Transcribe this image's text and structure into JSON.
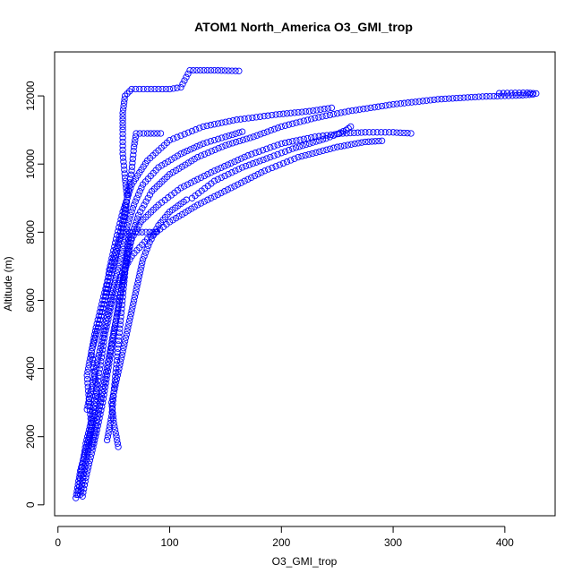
{
  "chart_data": {
    "type": "scatter",
    "title": "ATOM1 North_America O3_GMI_trop",
    "xlabel": "O3_GMI_trop",
    "ylabel": "Altitude (m)",
    "xlim": [
      -3,
      445
    ],
    "ylim": [
      -320,
      13290
    ],
    "x_ticks": [
      0,
      100,
      200,
      300,
      400
    ],
    "y_ticks": [
      0,
      2000,
      4000,
      6000,
      8000,
      10000,
      12000
    ],
    "x_tick_labels": [
      "0",
      "100",
      "200",
      "300",
      "400"
    ],
    "y_tick_labels": [
      "0",
      "2000",
      "4000",
      "6000",
      "8000",
      "10000",
      "12000"
    ],
    "grid": false,
    "legend": "none",
    "marker": "open-circle",
    "color": "#0000ff",
    "series": [
      {
        "points": [
          [
            16,
            200
          ],
          [
            18,
            600
          ],
          [
            20,
            1000
          ],
          [
            24,
            1500
          ],
          [
            28,
            2000
          ],
          [
            32,
            2600
          ],
          [
            35,
            3200
          ],
          [
            33,
            3800
          ],
          [
            30,
            4500
          ],
          [
            34,
            5200
          ],
          [
            40,
            6000
          ],
          [
            46,
            6800
          ],
          [
            52,
            7500
          ],
          [
            58,
            8000
          ],
          [
            62,
            9000
          ],
          [
            60,
            9600
          ],
          [
            58,
            10300
          ],
          [
            58,
            11000
          ],
          [
            58,
            11500
          ],
          [
            60,
            12000
          ],
          [
            66,
            12200
          ],
          [
            80,
            12200
          ],
          [
            100,
            12200
          ],
          [
            110,
            12250
          ],
          [
            118,
            12750
          ],
          [
            140,
            12750
          ],
          [
            162,
            12730
          ]
        ]
      },
      {
        "points": [
          [
            20,
            300
          ],
          [
            23,
            900
          ],
          [
            27,
            1600
          ],
          [
            30,
            2300
          ],
          [
            28,
            3000
          ],
          [
            26,
            3800
          ],
          [
            30,
            4500
          ],
          [
            36,
            5200
          ],
          [
            42,
            6000
          ],
          [
            50,
            7000
          ],
          [
            56,
            8000
          ],
          [
            62,
            9000
          ],
          [
            66,
            9800
          ],
          [
            68,
            10500
          ],
          [
            70,
            10900
          ],
          [
            80,
            10900
          ],
          [
            92,
            10900
          ]
        ]
      },
      {
        "points": [
          [
            22,
            250
          ],
          [
            25,
            800
          ],
          [
            30,
            1500
          ],
          [
            35,
            2200
          ],
          [
            40,
            3000
          ],
          [
            44,
            3800
          ],
          [
            48,
            4600
          ],
          [
            52,
            5400
          ],
          [
            56,
            6200
          ],
          [
            60,
            7000
          ],
          [
            66,
            7800
          ],
          [
            74,
            8300
          ],
          [
            90,
            8800
          ],
          [
            110,
            9300
          ],
          [
            140,
            9800
          ],
          [
            170,
            10250
          ],
          [
            200,
            10600
          ],
          [
            230,
            10800
          ],
          [
            255,
            10900
          ],
          [
            275,
            10930
          ],
          [
            300,
            10930
          ],
          [
            316,
            10900
          ]
        ]
      },
      {
        "points": [
          [
            18,
            300
          ],
          [
            21,
            1000
          ],
          [
            25,
            1800
          ],
          [
            30,
            2500
          ],
          [
            34,
            3300
          ],
          [
            38,
            4100
          ],
          [
            42,
            5000
          ],
          [
            48,
            5900
          ],
          [
            56,
            6700
          ],
          [
            66,
            7300
          ],
          [
            80,
            7800
          ],
          [
            100,
            8300
          ],
          [
            125,
            8800
          ],
          [
            155,
            9300
          ],
          [
            185,
            9800
          ],
          [
            215,
            10200
          ],
          [
            250,
            10500
          ],
          [
            275,
            10650
          ],
          [
            290,
            10680
          ]
        ]
      },
      {
        "points": [
          [
            30,
            1700
          ],
          [
            34,
            2300
          ],
          [
            38,
            3000
          ],
          [
            42,
            3700
          ],
          [
            46,
            4400
          ],
          [
            50,
            5100
          ],
          [
            54,
            5800
          ],
          [
            58,
            6500
          ],
          [
            62,
            7200
          ],
          [
            66,
            7900
          ],
          [
            72,
            8500
          ],
          [
            84,
            9200
          ],
          [
            100,
            9700
          ],
          [
            125,
            10200
          ],
          [
            150,
            10550
          ],
          [
            175,
            10800
          ],
          [
            200,
            11100
          ],
          [
            230,
            11350
          ],
          [
            260,
            11550
          ],
          [
            300,
            11750
          ],
          [
            340,
            11900
          ],
          [
            380,
            11980
          ],
          [
            410,
            12010
          ],
          [
            425,
            12040
          ],
          [
            428,
            12070
          ],
          [
            420,
            12090
          ],
          [
            395,
            12080
          ]
        ]
      },
      {
        "points": [
          [
            36,
            5200
          ],
          [
            42,
            6000
          ],
          [
            46,
            6900
          ],
          [
            52,
            7800
          ],
          [
            58,
            8600
          ],
          [
            66,
            9400
          ],
          [
            80,
            10100
          ],
          [
            100,
            10700
          ],
          [
            130,
            11100
          ],
          [
            160,
            11300
          ],
          [
            195,
            11450
          ],
          [
            225,
            11550
          ],
          [
            245,
            11650
          ]
        ]
      },
      {
        "points": [
          [
            44,
            1900
          ],
          [
            48,
            2600
          ],
          [
            50,
            3300
          ],
          [
            52,
            4000
          ],
          [
            54,
            4700
          ],
          [
            56,
            5400
          ],
          [
            58,
            6100
          ],
          [
            60,
            6800
          ],
          [
            62,
            7500
          ],
          [
            64,
            8000
          ],
          [
            72,
            8000
          ],
          [
            82,
            8000
          ],
          [
            88,
            8000
          ]
        ]
      },
      {
        "points": [
          [
            120,
            9000
          ],
          [
            140,
            9500
          ],
          [
            165,
            9900
          ],
          [
            190,
            10200
          ],
          [
            210,
            10450
          ],
          [
            225,
            10600
          ],
          [
            240,
            10750
          ],
          [
            250,
            10880
          ],
          [
            258,
            11000
          ],
          [
            262,
            11100
          ]
        ]
      },
      {
        "points": [
          [
            26,
            2800
          ],
          [
            30,
            3400
          ],
          [
            34,
            4000
          ],
          [
            38,
            4600
          ],
          [
            42,
            5200
          ],
          [
            46,
            5800
          ],
          [
            50,
            6400
          ],
          [
            54,
            7000
          ],
          [
            58,
            7500
          ],
          [
            62,
            8200
          ],
          [
            68,
            8800
          ],
          [
            76,
            9400
          ],
          [
            90,
            9900
          ],
          [
            110,
            10300
          ],
          [
            130,
            10600
          ],
          [
            150,
            10800
          ],
          [
            165,
            10950
          ]
        ]
      },
      {
        "points": [
          [
            54,
            1700
          ],
          [
            50,
            2400
          ],
          [
            48,
            3000
          ],
          [
            52,
            3600
          ],
          [
            56,
            4200
          ],
          [
            60,
            4800
          ],
          [
            64,
            5400
          ],
          [
            68,
            6000
          ],
          [
            72,
            6600
          ],
          [
            76,
            7200
          ],
          [
            82,
            7700
          ],
          [
            90,
            8200
          ],
          [
            100,
            8600
          ],
          [
            115,
            8950
          ]
        ]
      }
    ]
  }
}
